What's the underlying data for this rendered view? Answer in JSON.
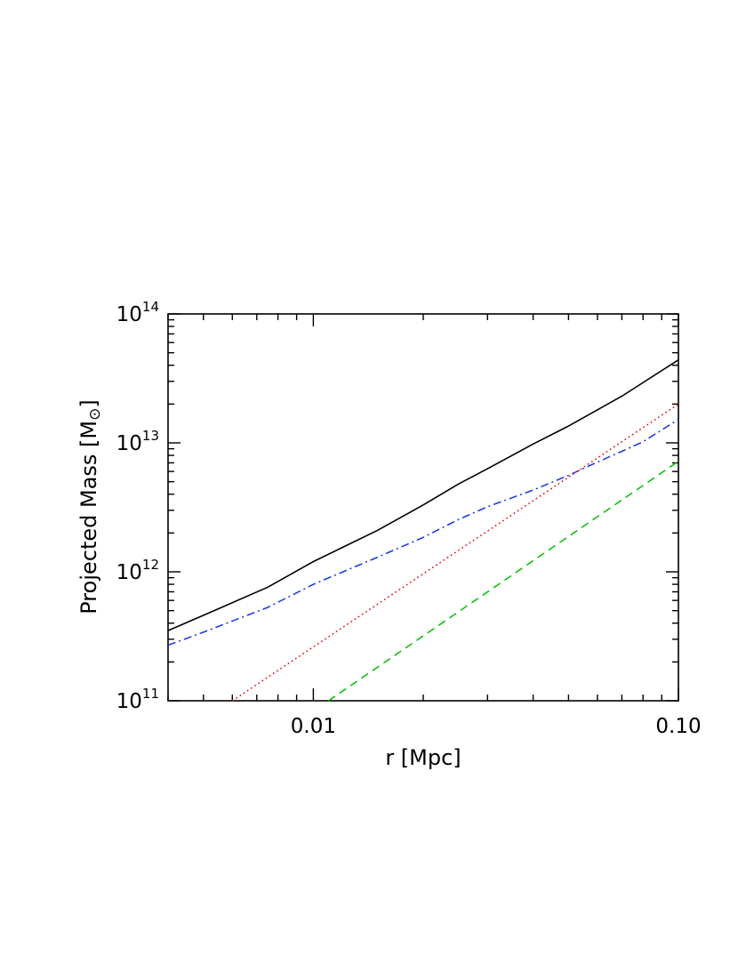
{
  "chart_data": {
    "type": "line",
    "title": "",
    "xlabel": "r [Mpc]",
    "ylabel": "Projected Mass [M",
    "ylabel_symbol": "⊙",
    "ylabel_close": "]",
    "x_scale": "log",
    "y_scale": "log",
    "xlim": [
      0.004,
      0.1
    ],
    "ylim": [
      100000000000.0,
      100000000000000.0
    ],
    "x_ticks": [
      {
        "value": 0.01,
        "label": "0.01"
      },
      {
        "value": 0.1,
        "label": "0.10"
      }
    ],
    "y_ticks": [
      {
        "value": 100000000000.0,
        "base": "10",
        "exp": "11"
      },
      {
        "value": 1000000000000.0,
        "base": "10",
        "exp": "12"
      },
      {
        "value": 10000000000000.0,
        "base": "10",
        "exp": "13"
      },
      {
        "value": 100000000000000.0,
        "base": "10",
        "exp": "14"
      }
    ],
    "grid": false,
    "legend": "none",
    "series": [
      {
        "style": "solid",
        "color": "#000000",
        "x": [
          0.004,
          0.005,
          0.0075,
          0.01,
          0.015,
          0.02,
          0.025,
          0.03,
          0.04,
          0.05,
          0.07,
          0.1
        ],
        "y": [
          350000000000.0,
          460000000000.0,
          760000000000.0,
          1200000000000.0,
          2100000000000.0,
          3300000000000.0,
          4800000000000.0,
          6300000000000.0,
          9800000000000.0,
          13500000000000.0,
          23000000000000.0,
          44000000000000.0
        ]
      },
      {
        "style": "dashdot",
        "color": "#1f3fe0",
        "x": [
          0.004,
          0.005,
          0.0075,
          0.01,
          0.015,
          0.02,
          0.025,
          0.03,
          0.04,
          0.05,
          0.06,
          0.07,
          0.08,
          0.1
        ],
        "y": [
          270000000000.0,
          340000000000.0,
          530000000000.0,
          800000000000.0,
          1300000000000.0,
          1850000000000.0,
          2550000000000.0,
          3200000000000.0,
          4300000000000.0,
          5600000000000.0,
          7100000000000.0,
          8600000000000.0,
          10200000000000.0,
          15200000000000.0
        ]
      },
      {
        "style": "dotted",
        "color": "#e01010",
        "x": [
          0.006,
          0.1
        ],
        "y": [
          100000000000.0,
          20000000000000.0
        ]
      },
      {
        "style": "dashed",
        "color": "#10c010",
        "x": [
          0.011,
          0.1
        ],
        "y": [
          100000000000.0,
          7200000000000.0
        ]
      }
    ]
  }
}
